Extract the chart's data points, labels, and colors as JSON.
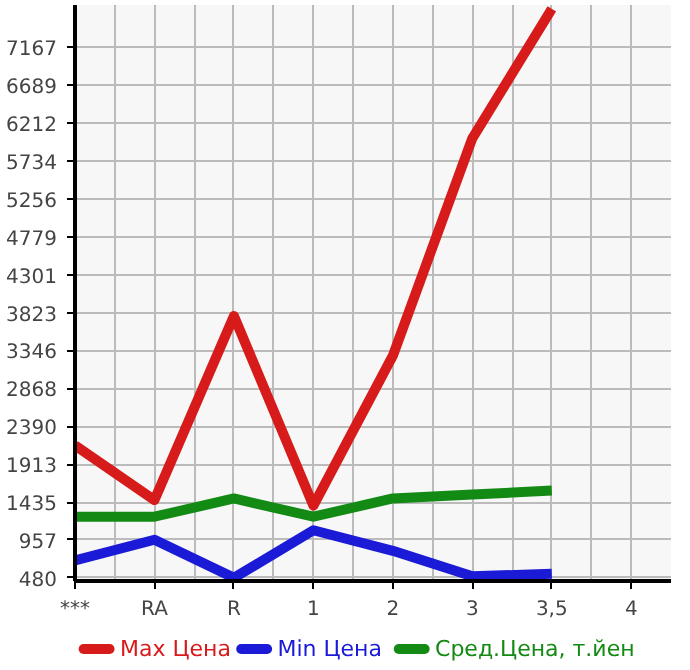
{
  "chart_data": {
    "type": "line",
    "categories": [
      "***",
      "RA",
      "R",
      "1",
      "2",
      "3",
      "3,5",
      "4"
    ],
    "series": [
      {
        "name": "Max Цена",
        "color": "#d71a1a",
        "values": [
          2150,
          1460,
          3780,
          1390,
          3280,
          6020,
          7650,
          null
        ]
      },
      {
        "name": "Min Цена",
        "color": "#1a1ad7",
        "values": [
          700,
          960,
          480,
          1080,
          820,
          500,
          530,
          null
        ]
      },
      {
        "name": "Сред.Цена, т.йен",
        "color": "#138a13",
        "values": [
          1250,
          1250,
          1480,
          1250,
          1480,
          1530,
          1580,
          null
        ]
      }
    ],
    "ylim": [
      440,
      7700
    ],
    "yticks": [
      480,
      957,
      1435,
      1913,
      2390,
      2868,
      3346,
      3823,
      4301,
      4779,
      5256,
      5734,
      6212,
      6689,
      7167
    ],
    "grid": true,
    "legend": "bottom",
    "marker": "none",
    "line_style": "solid"
  }
}
